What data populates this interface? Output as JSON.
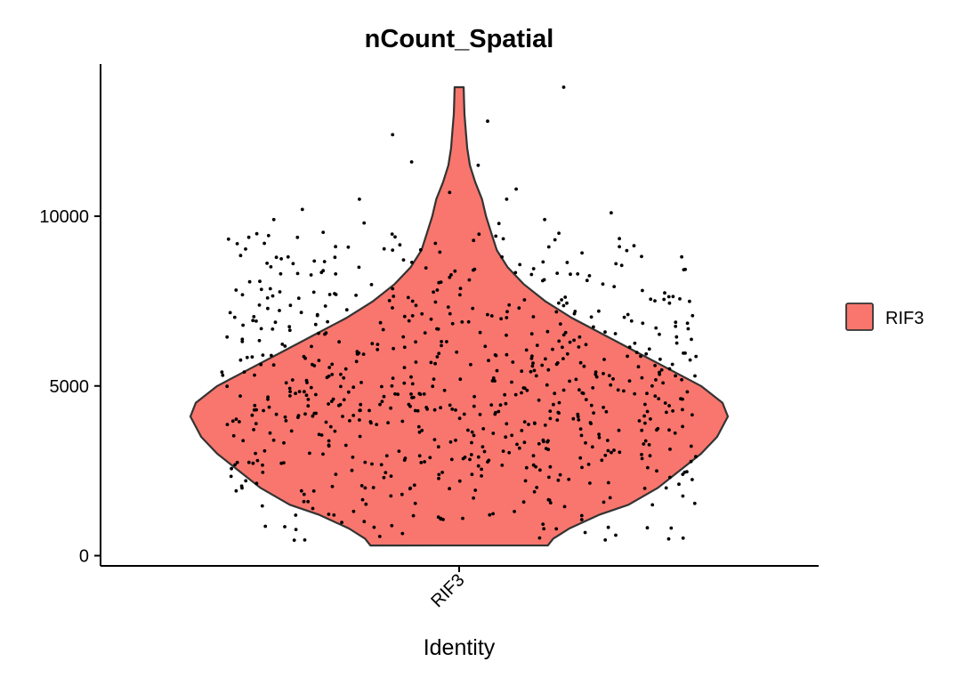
{
  "chart_data": {
    "type": "violin",
    "title": "nCount_Spatial",
    "xlabel": "Identity",
    "ylabel": "",
    "categories": [
      "RIF3"
    ],
    "ylim": [
      -300,
      14200
    ],
    "y_ticks": [
      0,
      5000,
      10000
    ],
    "y_tick_labels": [
      "0",
      "5000",
      "10000"
    ],
    "legend": {
      "position": "right",
      "entries": [
        {
          "label": "RIF3",
          "color": "#F8766D"
        }
      ]
    },
    "colors": {
      "fill": "#F8766D",
      "outline": "#333333",
      "points": "#000000"
    },
    "grid": false,
    "violin_density": [
      [
        300,
        0.33
      ],
      [
        500,
        0.35
      ],
      [
        800,
        0.41
      ],
      [
        1200,
        0.52
      ],
      [
        1500,
        0.63
      ],
      [
        2000,
        0.74
      ],
      [
        2500,
        0.82
      ],
      [
        3000,
        0.9
      ],
      [
        3500,
        0.96
      ],
      [
        4100,
        1.0
      ],
      [
        4500,
        0.98
      ],
      [
        5000,
        0.9
      ],
      [
        5500,
        0.78
      ],
      [
        6000,
        0.66
      ],
      [
        6500,
        0.54
      ],
      [
        7000,
        0.42
      ],
      [
        7500,
        0.32
      ],
      [
        8000,
        0.24
      ],
      [
        8500,
        0.18
      ],
      [
        9000,
        0.14
      ],
      [
        9500,
        0.12
      ],
      [
        10000,
        0.1
      ],
      [
        10500,
        0.085
      ],
      [
        11000,
        0.06
      ],
      [
        11500,
        0.04
      ],
      [
        12000,
        0.03
      ],
      [
        12500,
        0.025
      ],
      [
        13000,
        0.02
      ],
      [
        13500,
        0.018
      ],
      [
        13800,
        0.017
      ]
    ],
    "points_sample": [
      [
        0.72,
        13800
      ],
      [
        0.56,
        12800
      ],
      [
        0.36,
        12400
      ],
      [
        0.4,
        11600
      ],
      [
        0.54,
        11500
      ],
      [
        0.62,
        10800
      ],
      [
        0.48,
        10700
      ],
      [
        0.29,
        10500
      ],
      [
        0.17,
        10200
      ],
      [
        0.6,
        10500
      ],
      [
        0.3,
        9800
      ],
      [
        0.68,
        9900
      ],
      [
        0.11,
        9900
      ],
      [
        0.82,
        10100
      ],
      [
        0.45,
        9200
      ],
      [
        0.09,
        9200
      ],
      [
        0.71,
        9500
      ],
      [
        0.36,
        9000
      ],
      [
        0.14,
        8800
      ],
      [
        0.59,
        8800
      ],
      [
        0.83,
        8600
      ],
      [
        0.24,
        8300
      ],
      [
        0.48,
        8200
      ]
    ]
  }
}
